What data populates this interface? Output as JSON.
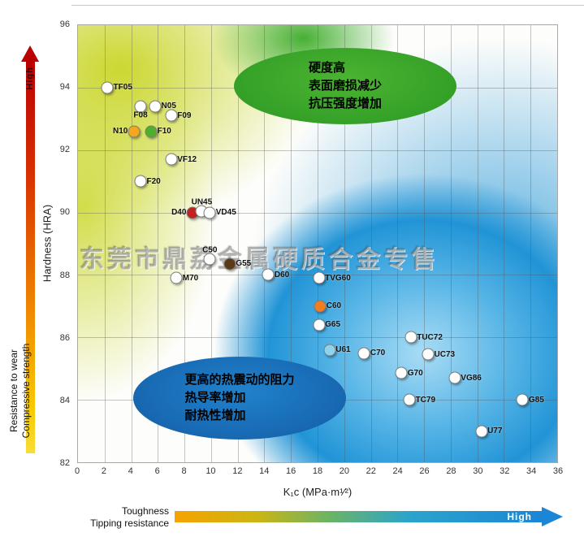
{
  "watermark": "东莞市鼎荔金属硬质合金专售",
  "left_axis": {
    "title": "Hardness (HRA)",
    "arrow_label": "High",
    "label_line1": "Resistance to wear",
    "label_line2": "Compressive strength"
  },
  "bottom_axis": {
    "title": "K₁c (MPa·m¹⁄²)",
    "label_line1": "Toughness",
    "label_line2": "Tipping resistance",
    "arrow_label": "High"
  },
  "annotations": {
    "green": {
      "lines": [
        "硬度高",
        "表面磨损减少",
        "抗压强度增加"
      ],
      "color": "#2f9b25"
    },
    "blue": {
      "lines": [
        "更高的热震动的阻力",
        "热导率增加",
        "耐热性增加"
      ],
      "color": "#1a74c2"
    }
  },
  "chart_data": {
    "type": "scatter",
    "title": "",
    "xlabel": "K₁c (MPa·m¹⁄²)",
    "ylabel": "Hardness (HRA)",
    "xlim": [
      0,
      36
    ],
    "ylim": [
      82,
      96
    ],
    "grid": true,
    "x_ticks": [
      0,
      2,
      4,
      6,
      8,
      10,
      12,
      14,
      16,
      18,
      20,
      22,
      24,
      26,
      28,
      30,
      32,
      34,
      36
    ],
    "y_ticks": [
      82,
      84,
      86,
      88,
      90,
      92,
      94,
      96
    ],
    "points": [
      {
        "label": "TF05",
        "x": 2.2,
        "y": 94.0,
        "color": "#ffffff",
        "label_pos": "right"
      },
      {
        "label": "F08",
        "x": 4.7,
        "y": 93.4,
        "color": "#ffffff",
        "label_pos": "below"
      },
      {
        "label": "N05",
        "x": 5.8,
        "y": 93.4,
        "color": "#ffffff",
        "label_pos": "right"
      },
      {
        "label": "F09",
        "x": 7.0,
        "y": 93.1,
        "color": "#ffffff",
        "label_pos": "right"
      },
      {
        "label": "N10",
        "x": 4.2,
        "y": 92.6,
        "color": "#f2a71c",
        "label_pos": "left"
      },
      {
        "label": "F10",
        "x": 5.5,
        "y": 92.6,
        "color": "#4fae2a",
        "label_pos": "right"
      },
      {
        "label": "VF12",
        "x": 7.0,
        "y": 91.7,
        "color": "#ffffff",
        "label_pos": "right"
      },
      {
        "label": "F20",
        "x": 4.7,
        "y": 91.0,
        "color": "#ffffff",
        "label_pos": "right"
      },
      {
        "label": "D40",
        "x": 8.6,
        "y": 90.0,
        "color": "#c42020",
        "label_pos": "left"
      },
      {
        "label": "UN45",
        "x": 9.3,
        "y": 90.05,
        "color": "#ffffff",
        "label_pos": "above"
      },
      {
        "label": "VD45",
        "x": 9.9,
        "y": 90.0,
        "color": "#ffffff",
        "label_pos": "right"
      },
      {
        "label": "C50",
        "x": 9.9,
        "y": 88.5,
        "color": "#ffffff",
        "label_pos": "above"
      },
      {
        "label": "G55",
        "x": 11.4,
        "y": 88.35,
        "color": "#5d3a17",
        "label_pos": "right"
      },
      {
        "label": "M70",
        "x": 7.4,
        "y": 87.9,
        "color": "#ffffff",
        "label_pos": "right"
      },
      {
        "label": "D60",
        "x": 14.3,
        "y": 88.0,
        "color": "#ffffff",
        "label_pos": "right"
      },
      {
        "label": "TVG60",
        "x": 18.1,
        "y": 87.9,
        "color": "#ffffff",
        "label_pos": "right"
      },
      {
        "label": "C60",
        "x": 18.2,
        "y": 87.0,
        "color": "#f07d20",
        "label_pos": "right"
      },
      {
        "label": "G65",
        "x": 18.1,
        "y": 86.4,
        "color": "#ffffff",
        "label_pos": "right"
      },
      {
        "label": "U61",
        "x": 18.9,
        "y": 85.6,
        "color": "#8ed2ec",
        "label_pos": "right"
      },
      {
        "label": "C70",
        "x": 21.5,
        "y": 85.5,
        "color": "#ffffff",
        "label_pos": "right"
      },
      {
        "label": "TUC72",
        "x": 25.0,
        "y": 86.0,
        "color": "#ffffff",
        "label_pos": "right"
      },
      {
        "label": "UC73",
        "x": 26.3,
        "y": 85.45,
        "color": "#ffffff",
        "label_pos": "right"
      },
      {
        "label": "G70",
        "x": 24.3,
        "y": 84.85,
        "color": "#ffffff",
        "label_pos": "right"
      },
      {
        "label": "VG86",
        "x": 28.3,
        "y": 84.7,
        "color": "#ffffff",
        "label_pos": "right"
      },
      {
        "label": "TC79",
        "x": 24.9,
        "y": 84.0,
        "color": "#ffffff",
        "label_pos": "right"
      },
      {
        "label": "G85",
        "x": 33.4,
        "y": 84.0,
        "color": "#ffffff",
        "label_pos": "right"
      },
      {
        "label": "U77",
        "x": 30.3,
        "y": 83.0,
        "color": "#ffffff",
        "label_pos": "right"
      }
    ]
  }
}
